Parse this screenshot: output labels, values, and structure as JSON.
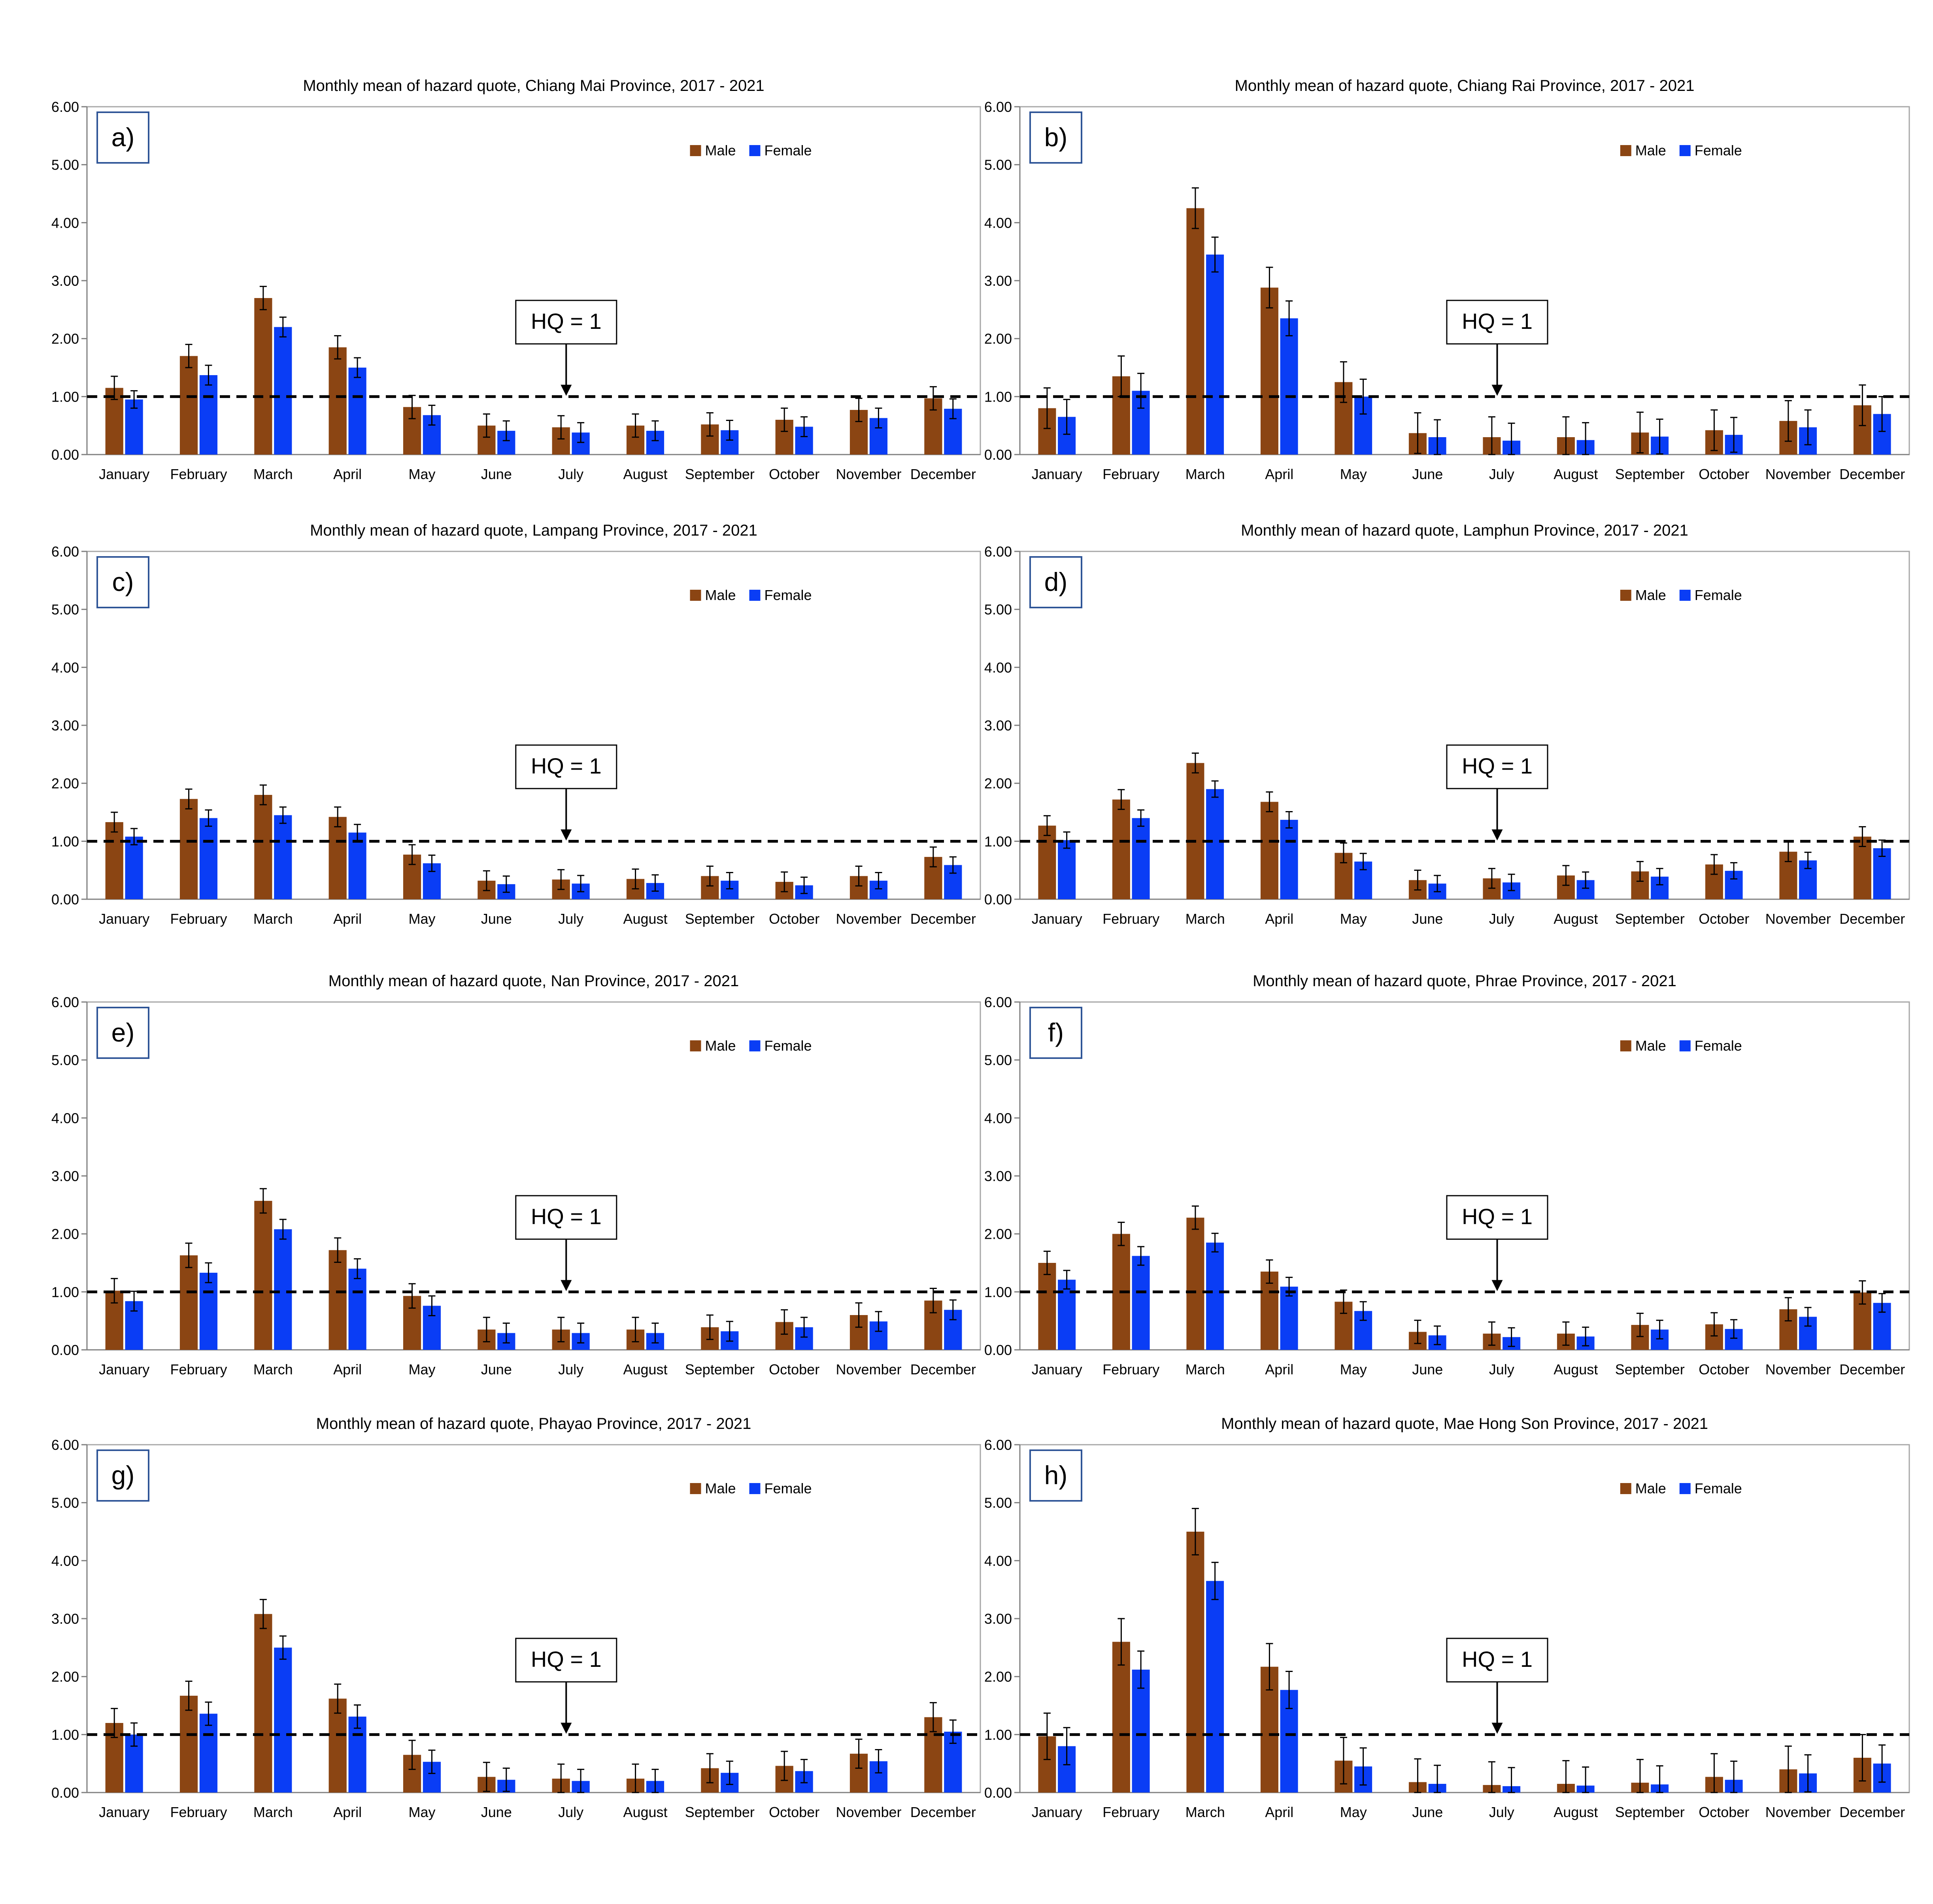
{
  "figure": {
    "colors": {
      "male": "#8B4513",
      "female": "#0A3DF5",
      "axis": "#7F7F7F",
      "plot_border": "#A6A6A6",
      "panel_label_border": "#2F5597",
      "text": "#000000"
    },
    "legend": {
      "male": "Male",
      "female": "Female"
    },
    "hq_label": "HQ = 1",
    "ytick_labels": [
      "0.00",
      "1.00",
      "2.00",
      "3.00",
      "4.00",
      "5.00",
      "6.00"
    ]
  },
  "chart_data": [
    {
      "type": "bar",
      "panel": "a)",
      "title": "Monthly mean of hazard quote, Chiang Mai Province, 2017 - 2021",
      "categories": [
        "January",
        "February",
        "March",
        "April",
        "May",
        "June",
        "July",
        "August",
        "September",
        "October",
        "November",
        "December"
      ],
      "series": [
        {
          "name": "Male",
          "values": [
            1.15,
            1.7,
            2.7,
            1.85,
            0.82,
            0.5,
            0.47,
            0.5,
            0.52,
            0.6,
            0.77,
            0.97
          ],
          "errors": [
            0.2,
            0.2,
            0.2,
            0.2,
            0.2,
            0.2,
            0.2,
            0.2,
            0.2,
            0.2,
            0.2,
            0.2
          ]
        },
        {
          "name": "Female",
          "values": [
            0.95,
            1.37,
            2.2,
            1.5,
            0.68,
            0.41,
            0.38,
            0.41,
            0.42,
            0.48,
            0.63,
            0.79
          ],
          "errors": [
            0.15,
            0.17,
            0.17,
            0.17,
            0.17,
            0.17,
            0.17,
            0.17,
            0.17,
            0.17,
            0.17,
            0.17
          ]
        }
      ],
      "ylim": [
        0,
        6
      ],
      "reference_line": 1.0
    },
    {
      "type": "bar",
      "panel": "b)",
      "title": "Monthly mean of hazard quote, Chiang Rai Province, 2017 - 2021",
      "categories": [
        "January",
        "February",
        "March",
        "April",
        "May",
        "June",
        "July",
        "August",
        "September",
        "October",
        "November",
        "December"
      ],
      "series": [
        {
          "name": "Male",
          "values": [
            0.8,
            1.35,
            4.25,
            2.88,
            1.25,
            0.37,
            0.3,
            0.3,
            0.38,
            0.42,
            0.58,
            0.85
          ],
          "errors": [
            0.35,
            0.35,
            0.35,
            0.35,
            0.35,
            0.35,
            0.35,
            0.35,
            0.35,
            0.35,
            0.35,
            0.35
          ]
        },
        {
          "name": "Female",
          "values": [
            0.65,
            1.1,
            3.45,
            2.35,
            1.0,
            0.3,
            0.24,
            0.25,
            0.31,
            0.34,
            0.47,
            0.7
          ],
          "errors": [
            0.3,
            0.3,
            0.3,
            0.3,
            0.3,
            0.3,
            0.3,
            0.3,
            0.3,
            0.3,
            0.3,
            0.3
          ]
        }
      ],
      "ylim": [
        0,
        6
      ],
      "reference_line": 1.0
    },
    {
      "type": "bar",
      "panel": "c)",
      "title": "Monthly mean of hazard quote, Lampang Province, 2017 - 2021",
      "categories": [
        "January",
        "February",
        "March",
        "April",
        "May",
        "June",
        "July",
        "August",
        "September",
        "October",
        "November",
        "December"
      ],
      "series": [
        {
          "name": "Male",
          "values": [
            1.33,
            1.73,
            1.8,
            1.42,
            0.77,
            0.32,
            0.34,
            0.35,
            0.4,
            0.3,
            0.4,
            0.73
          ],
          "errors": [
            0.17,
            0.17,
            0.17,
            0.17,
            0.17,
            0.17,
            0.17,
            0.17,
            0.17,
            0.17,
            0.17,
            0.17
          ]
        },
        {
          "name": "Female",
          "values": [
            1.08,
            1.4,
            1.45,
            1.15,
            0.62,
            0.26,
            0.27,
            0.28,
            0.32,
            0.24,
            0.32,
            0.59
          ],
          "errors": [
            0.14,
            0.14,
            0.14,
            0.14,
            0.14,
            0.14,
            0.14,
            0.14,
            0.14,
            0.14,
            0.14,
            0.14
          ]
        }
      ],
      "ylim": [
        0,
        6
      ],
      "reference_line": 1.0
    },
    {
      "type": "bar",
      "panel": "d)",
      "title": "Monthly mean of hazard quote, Lamphun Province, 2017 - 2021",
      "categories": [
        "January",
        "February",
        "March",
        "April",
        "May",
        "June",
        "July",
        "August",
        "September",
        "October",
        "November",
        "December"
      ],
      "series": [
        {
          "name": "Male",
          "values": [
            1.27,
            1.72,
            2.35,
            1.68,
            0.8,
            0.33,
            0.36,
            0.41,
            0.48,
            0.6,
            0.82,
            1.08
          ],
          "errors": [
            0.17,
            0.17,
            0.17,
            0.17,
            0.17,
            0.17,
            0.17,
            0.17,
            0.17,
            0.17,
            0.17,
            0.17
          ]
        },
        {
          "name": "Female",
          "values": [
            1.02,
            1.4,
            1.9,
            1.37,
            0.65,
            0.27,
            0.29,
            0.33,
            0.39,
            0.49,
            0.67,
            0.88
          ],
          "errors": [
            0.14,
            0.14,
            0.14,
            0.14,
            0.14,
            0.14,
            0.14,
            0.14,
            0.14,
            0.14,
            0.14,
            0.14
          ]
        }
      ],
      "ylim": [
        0,
        6
      ],
      "reference_line": 1.0
    },
    {
      "type": "bar",
      "panel": "e)",
      "title": "Monthly mean of hazard quote, Nan Province, 2017 - 2021",
      "categories": [
        "January",
        "February",
        "March",
        "April",
        "May",
        "June",
        "July",
        "August",
        "September",
        "October",
        "November",
        "December"
      ],
      "series": [
        {
          "name": "Male",
          "values": [
            1.02,
            1.63,
            2.57,
            1.72,
            0.93,
            0.35,
            0.35,
            0.35,
            0.39,
            0.48,
            0.6,
            0.85
          ],
          "errors": [
            0.21,
            0.21,
            0.21,
            0.21,
            0.21,
            0.21,
            0.21,
            0.21,
            0.21,
            0.21,
            0.21,
            0.21
          ]
        },
        {
          "name": "Female",
          "values": [
            0.84,
            1.33,
            2.08,
            1.4,
            0.76,
            0.29,
            0.29,
            0.29,
            0.32,
            0.39,
            0.49,
            0.69
          ],
          "errors": [
            0.17,
            0.17,
            0.17,
            0.17,
            0.17,
            0.17,
            0.17,
            0.17,
            0.17,
            0.17,
            0.17,
            0.17
          ]
        }
      ],
      "ylim": [
        0,
        6
      ],
      "reference_line": 1.0
    },
    {
      "type": "bar",
      "panel": "f)",
      "title": "Monthly mean of hazard quote, Phrae Province, 2017 - 2021",
      "categories": [
        "January",
        "February",
        "March",
        "April",
        "May",
        "June",
        "July",
        "August",
        "September",
        "October",
        "November",
        "December"
      ],
      "series": [
        {
          "name": "Male",
          "values": [
            1.5,
            2.0,
            2.28,
            1.35,
            0.83,
            0.31,
            0.28,
            0.28,
            0.43,
            0.44,
            0.7,
            0.99
          ],
          "errors": [
            0.2,
            0.2,
            0.2,
            0.2,
            0.2,
            0.2,
            0.2,
            0.2,
            0.2,
            0.2,
            0.2,
            0.2
          ]
        },
        {
          "name": "Female",
          "values": [
            1.21,
            1.62,
            1.85,
            1.09,
            0.67,
            0.25,
            0.22,
            0.23,
            0.35,
            0.36,
            0.57,
            0.81
          ],
          "errors": [
            0.16,
            0.16,
            0.16,
            0.16,
            0.16,
            0.16,
            0.16,
            0.16,
            0.16,
            0.16,
            0.16,
            0.16
          ]
        }
      ],
      "ylim": [
        0,
        6
      ],
      "reference_line": 1.0
    },
    {
      "type": "bar",
      "panel": "g)",
      "title": "Monthly mean of hazard quote, Phayao Province, 2017 - 2021",
      "categories": [
        "January",
        "February",
        "March",
        "April",
        "May",
        "June",
        "July",
        "August",
        "September",
        "October",
        "November",
        "December"
      ],
      "series": [
        {
          "name": "Male",
          "values": [
            1.2,
            1.67,
            3.08,
            1.62,
            0.65,
            0.27,
            0.24,
            0.24,
            0.42,
            0.46,
            0.67,
            1.3
          ],
          "errors": [
            0.25,
            0.25,
            0.25,
            0.25,
            0.25,
            0.25,
            0.25,
            0.25,
            0.25,
            0.25,
            0.25,
            0.25
          ]
        },
        {
          "name": "Female",
          "values": [
            1.0,
            1.36,
            2.5,
            1.31,
            0.53,
            0.22,
            0.2,
            0.2,
            0.34,
            0.37,
            0.54,
            1.05
          ],
          "errors": [
            0.2,
            0.2,
            0.2,
            0.2,
            0.2,
            0.2,
            0.2,
            0.2,
            0.2,
            0.2,
            0.2,
            0.2
          ]
        }
      ],
      "ylim": [
        0,
        6
      ],
      "reference_line": 1.0
    },
    {
      "type": "bar",
      "panel": "h)",
      "title": "Monthly mean of hazard quote, Mae Hong Son Province, 2017 - 2021",
      "categories": [
        "January",
        "February",
        "March",
        "April",
        "May",
        "June",
        "July",
        "August",
        "September",
        "October",
        "November",
        "December"
      ],
      "series": [
        {
          "name": "Male",
          "values": [
            0.97,
            2.6,
            4.5,
            2.17,
            0.55,
            0.18,
            0.13,
            0.15,
            0.17,
            0.27,
            0.4,
            0.6
          ],
          "errors": [
            0.4,
            0.4,
            0.4,
            0.4,
            0.4,
            0.4,
            0.4,
            0.4,
            0.4,
            0.4,
            0.4,
            0.4
          ]
        },
        {
          "name": "Female",
          "values": [
            0.8,
            2.12,
            3.65,
            1.77,
            0.45,
            0.15,
            0.11,
            0.12,
            0.14,
            0.22,
            0.33,
            0.5
          ],
          "errors": [
            0.32,
            0.32,
            0.32,
            0.32,
            0.32,
            0.32,
            0.32,
            0.32,
            0.32,
            0.32,
            0.32,
            0.32
          ]
        }
      ],
      "ylim": [
        0,
        6
      ],
      "reference_line": 1.0
    }
  ]
}
